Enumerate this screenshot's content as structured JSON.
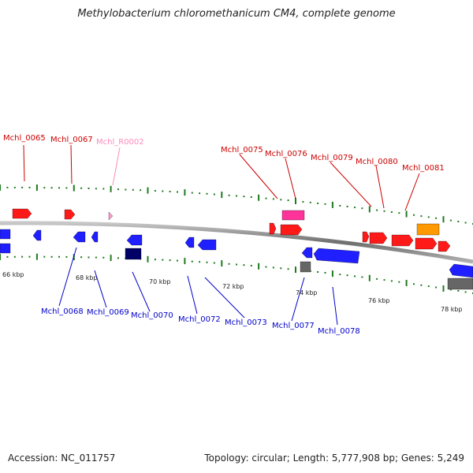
{
  "title": "Methylobacterium chloromethanicum CM4, complete genome",
  "footer": {
    "accession": "Accession: NC_011757",
    "topology": "Topology: circular; Length: 5,777,908 bp; Genes: 5,249"
  },
  "colors": {
    "backbone": "#8a8a8a",
    "tick": "#1f7a1f",
    "gene_red": "#ff1a1a",
    "gene_blue": "#1f1fff",
    "gene_navy": "#000066",
    "gene_gray": "#666666",
    "gene_pink": "#ff3399",
    "gene_lightpink": "#ff99cc",
    "gene_orange": "#ff9900",
    "label_red": "#cc0000",
    "label_blue": "#0000cc",
    "label_pink": "#ff88bb"
  },
  "scale_labels": [
    "66 kbp",
    "68 kbp",
    "70 kbp",
    "72 kbp",
    "74 kbp",
    "76 kbp",
    "78 kbp"
  ],
  "gene_labels_top": [
    "Mchl_0065",
    "Mchl_0067",
    "Mchl_R0002",
    "Mchl_0075",
    "Mchl_0076",
    "Mchl_0079",
    "Mchl_0080",
    "Mchl_0081"
  ],
  "gene_labels_bottom": [
    "Mchl_0068",
    "Mchl_0069",
    "Mchl_0070",
    "Mchl_0072",
    "Mchl_0073",
    "Mchl_0077",
    "Mchl_0078"
  ]
}
